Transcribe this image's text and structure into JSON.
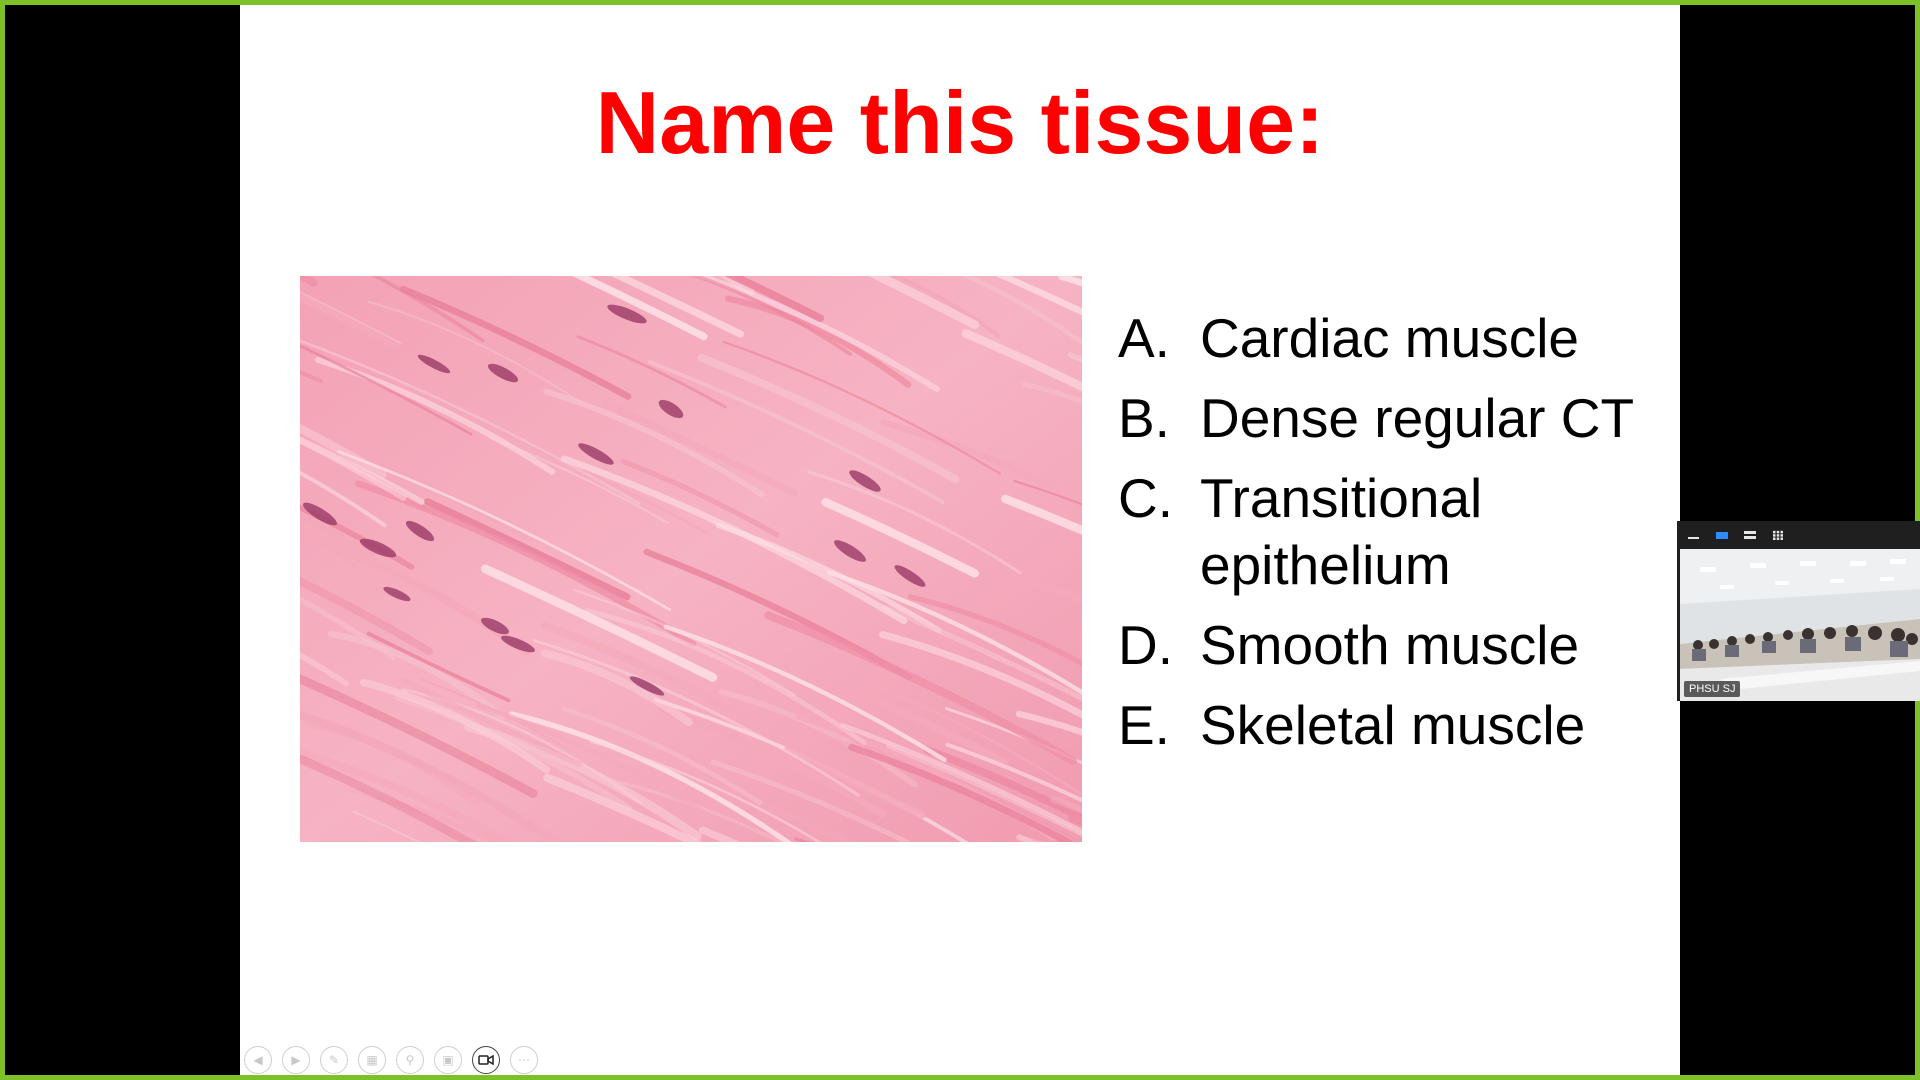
{
  "slide": {
    "title": "Name this tissue:",
    "image_subject": "histology micrograph of pink stained tissue with elongated nuclei",
    "options": [
      {
        "letter": "A.",
        "text": "Cardiac muscle"
      },
      {
        "letter": "B.",
        "text": "Dense regular CT"
      },
      {
        "letter": "C.",
        "text": "Transitional epithelium"
      },
      {
        "letter": "D.",
        "text": "Smooth muscle"
      },
      {
        "letter": "E.",
        "text": "Skeletal muscle"
      }
    ]
  },
  "toolbar": {
    "icons": [
      "previous-slide-icon",
      "next-slide-icon",
      "pen-icon",
      "slide-sorter-icon",
      "zoom-icon",
      "subtitles-icon",
      "camera-icon",
      "more-icon"
    ]
  },
  "video": {
    "participant_label": "PHSU SJ",
    "icons": [
      "minimize-icon",
      "speaker-view-icon",
      "side-by-side-icon",
      "gallery-view-icon"
    ]
  },
  "colors": {
    "frame_border": "#7dc12a",
    "title": "#ff0000",
    "slide_background": "#ffffff",
    "screen_background": "#000000",
    "active_view_icon": "#2d8cff"
  }
}
